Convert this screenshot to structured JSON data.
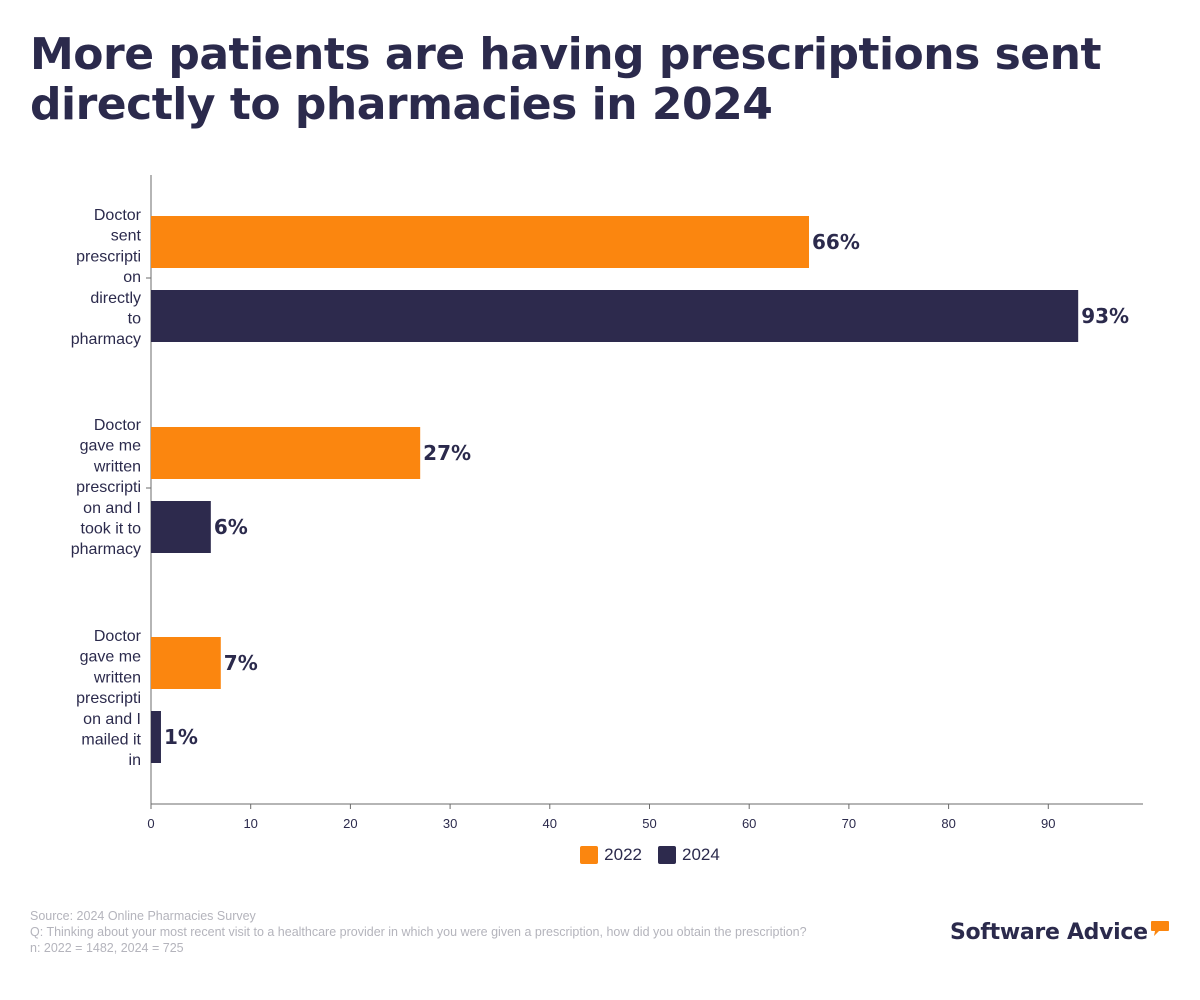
{
  "title_lines": [
    "More patients are having prescriptions sent",
    "directly to pharmacies in 2024"
  ],
  "colors": {
    "y2022": "#fb860f",
    "y2024": "#2d2a4d",
    "text": "#2b2a4c",
    "footer": "#b4b4bc"
  },
  "chart_data": {
    "type": "bar",
    "orientation": "horizontal",
    "categories": [
      [
        "Doctor",
        "sent",
        "prescripti",
        "on",
        "directly",
        "to",
        "pharmacy"
      ],
      [
        "Doctor",
        "gave me",
        "written",
        "prescripti",
        "on and I",
        "took it to",
        "pharmacy"
      ],
      [
        "Doctor",
        "gave me",
        "written",
        "prescripti",
        "on and I",
        "mailed it",
        "in"
      ]
    ],
    "series": [
      {
        "name": "2022",
        "values": [
          66,
          27,
          7
        ],
        "labels": [
          "66%",
          "27%",
          "7%"
        ]
      },
      {
        "name": "2024",
        "values": [
          93,
          6,
          1
        ],
        "labels": [
          "93%",
          "6%",
          "1%"
        ]
      }
    ],
    "xlim": [
      0,
      99.5
    ],
    "xticks": [
      0,
      10,
      20,
      30,
      40,
      50,
      60,
      70,
      80,
      90
    ],
    "grid": false,
    "legend_position": "bottom"
  },
  "footer": {
    "source": "Source: 2024 Online Pharmacies Survey",
    "question": "Q: Thinking about your most recent visit to a healthcare provider in which you were given a prescription, how did you obtain the prescription?",
    "sample": "n: 2022 = 1482, 2024 = 725"
  },
  "brand": {
    "name": "Software Advice",
    "logo_icon": "speech-bubble-icon"
  }
}
